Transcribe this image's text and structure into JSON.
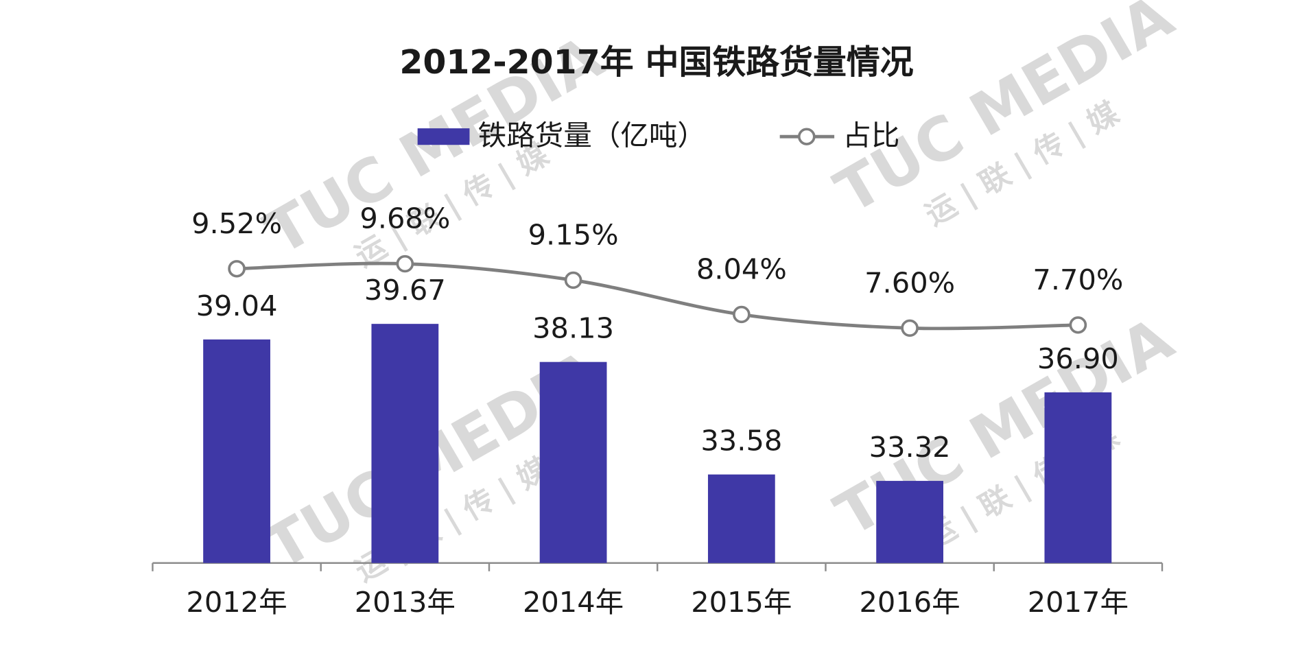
{
  "chart_data": {
    "type": "bar",
    "title": "2012-2017年 中国铁路货量情况",
    "watermark": "TUC MEDIA",
    "watermark_sub": "运 | 联 | 传 | 媒",
    "categories": [
      "2012年",
      "2013年",
      "2014年",
      "2015年",
      "2016年",
      "2017年"
    ],
    "series": [
      {
        "name": "铁路货量（亿吨）",
        "type": "bar",
        "color": "#3f38a6",
        "values": [
          39.04,
          39.67,
          38.13,
          33.58,
          33.32,
          36.9
        ],
        "value_labels": [
          "39.04",
          "39.67",
          "38.13",
          "33.58",
          "33.32",
          "36.90"
        ]
      },
      {
        "name": "占比",
        "type": "line",
        "axis": "y2",
        "color": "#7f7f7f",
        "values": [
          9.52,
          9.68,
          9.15,
          8.04,
          7.6,
          7.7
        ],
        "value_labels": [
          "9.52%",
          "9.68%",
          "9.15%",
          "8.04%",
          "7.60%",
          "7.70%"
        ]
      }
    ],
    "ylim": [
      30,
      45
    ],
    "y2lim": [
      0,
      12
    ],
    "legend": "top",
    "grid": false
  }
}
